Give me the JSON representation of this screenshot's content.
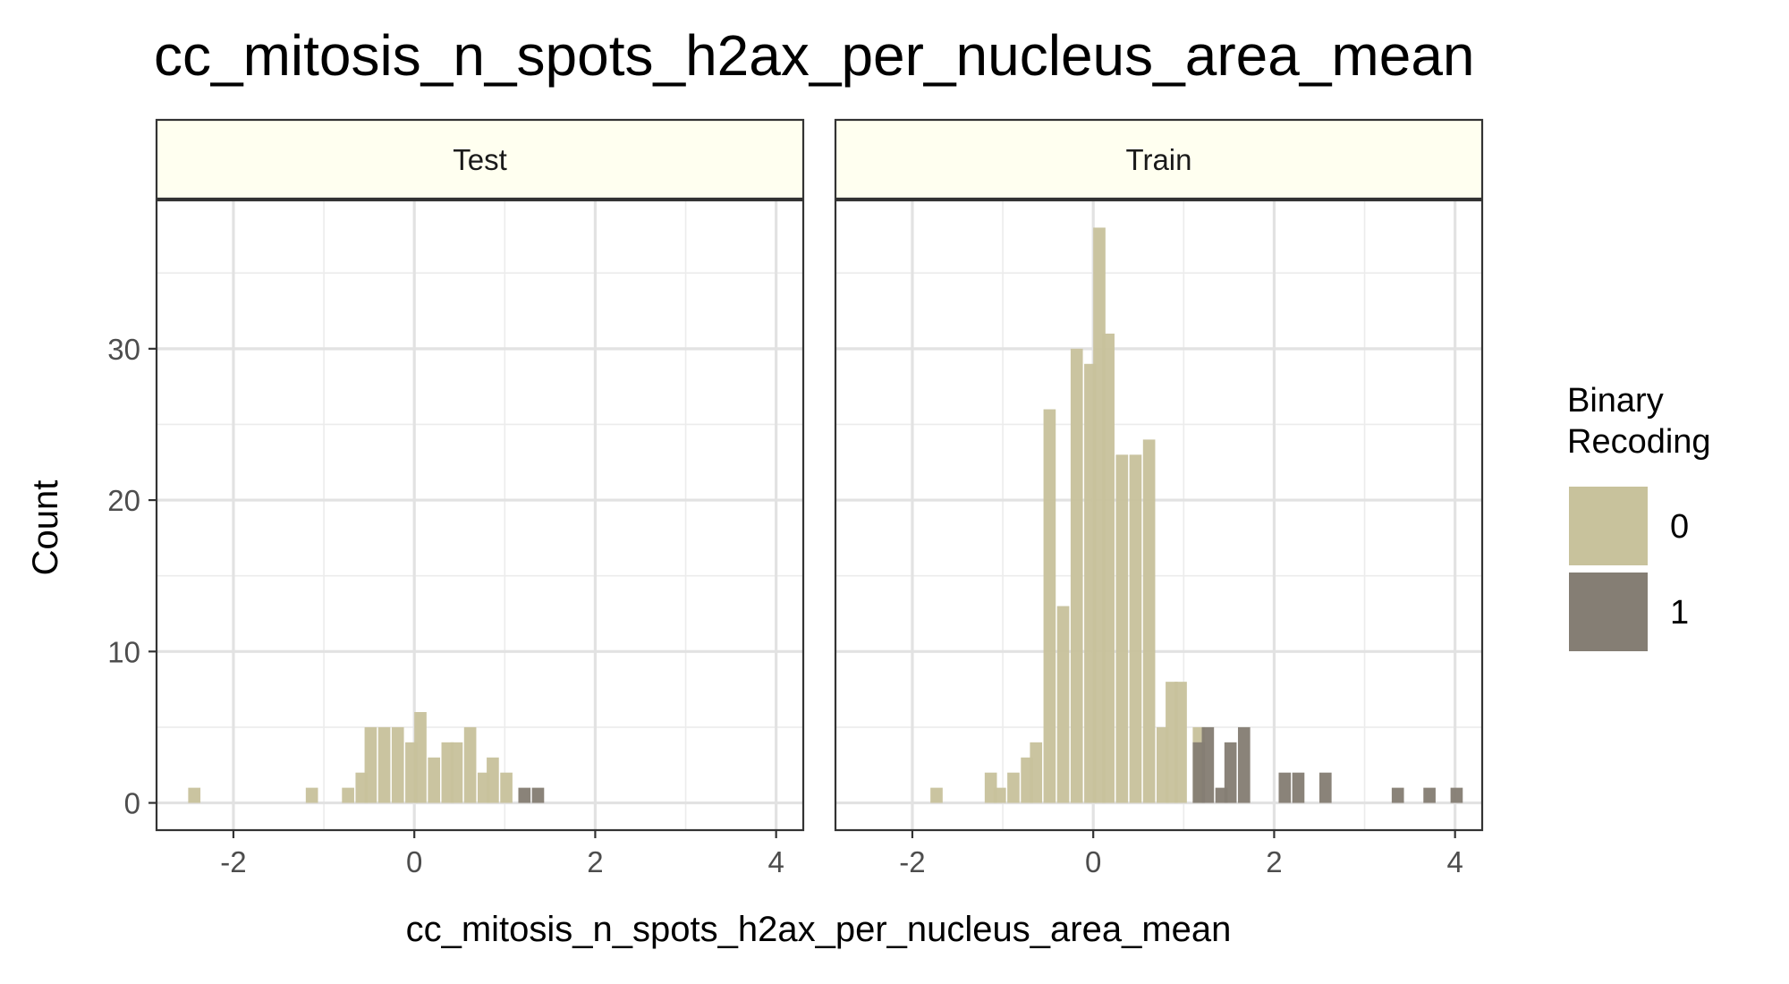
{
  "chart_data": {
    "type": "bar",
    "title": "cc_mitosis_n_spots_h2ax_per_nucleus_area_mean",
    "xlabel": "cc_mitosis_n_spots_h2ax_per_nucleus_area_mean",
    "ylabel": "Count",
    "xlim": [
      -2.85,
      4.3
    ],
    "ylim": [
      -1.8,
      39.8
    ],
    "x_ticks": [
      "-2",
      "0",
      "2",
      "4"
    ],
    "x_tick_values": [
      -2,
      0,
      2,
      4
    ],
    "y_ticks": [
      "0",
      "10",
      "20",
      "30"
    ],
    "y_tick_values": [
      0,
      10,
      20,
      30
    ],
    "bin_width": 0.135,
    "grid": true,
    "facet_strip_color": "#FFFFF0",
    "legend": {
      "title_lines": [
        "Binary",
        "Recoding"
      ],
      "position": "right",
      "entries": [
        {
          "label": "0",
          "color": "#C8C29C"
        },
        {
          "label": "1",
          "color": "#857E74"
        }
      ]
    },
    "panels": [
      {
        "name": "Test",
        "series": [
          {
            "name": "0",
            "color": "#C8C29C",
            "bins": [
              [
                -2.5,
                1
              ],
              [
                -1.2,
                1
              ],
              [
                -0.8,
                1
              ],
              [
                -0.65,
                2
              ],
              [
                -0.55,
                5
              ],
              [
                -0.4,
                5
              ],
              [
                -0.25,
                5
              ],
              [
                -0.1,
                4
              ],
              [
                0.0,
                6
              ],
              [
                0.15,
                3
              ],
              [
                0.3,
                4
              ],
              [
                0.4,
                4
              ],
              [
                0.55,
                5
              ],
              [
                0.7,
                2
              ],
              [
                0.8,
                3
              ],
              [
                0.95,
                2
              ]
            ]
          },
          {
            "name": "1",
            "color": "#857E74",
            "bins": [
              [
                1.15,
                1
              ],
              [
                1.3,
                1
              ]
            ]
          }
        ]
      },
      {
        "name": "Train",
        "series": [
          {
            "name": "0",
            "color": "#C8C29C",
            "bins": [
              [
                -1.8,
                1
              ],
              [
                -1.2,
                2
              ],
              [
                -1.1,
                1
              ],
              [
                -0.95,
                2
              ],
              [
                -0.8,
                3
              ],
              [
                -0.7,
                4
              ],
              [
                -0.55,
                26
              ],
              [
                -0.4,
                13
              ],
              [
                -0.25,
                30
              ],
              [
                -0.1,
                29
              ],
              [
                0.0,
                38
              ],
              [
                0.1,
                31
              ],
              [
                0.25,
                23
              ],
              [
                0.4,
                23
              ],
              [
                0.55,
                24
              ],
              [
                0.7,
                5
              ],
              [
                0.8,
                8
              ],
              [
                0.9,
                8
              ],
              [
                1.1,
                5
              ]
            ]
          },
          {
            "name": "1",
            "color": "#857E74",
            "bins": [
              [
                1.1,
                4
              ],
              [
                1.2,
                5
              ],
              [
                1.35,
                1
              ],
              [
                1.45,
                4
              ],
              [
                1.6,
                5
              ],
              [
                2.05,
                2
              ],
              [
                2.2,
                2
              ],
              [
                2.5,
                2
              ],
              [
                3.3,
                1
              ],
              [
                3.65,
                1
              ],
              [
                3.95,
                1
              ]
            ]
          }
        ]
      }
    ]
  }
}
